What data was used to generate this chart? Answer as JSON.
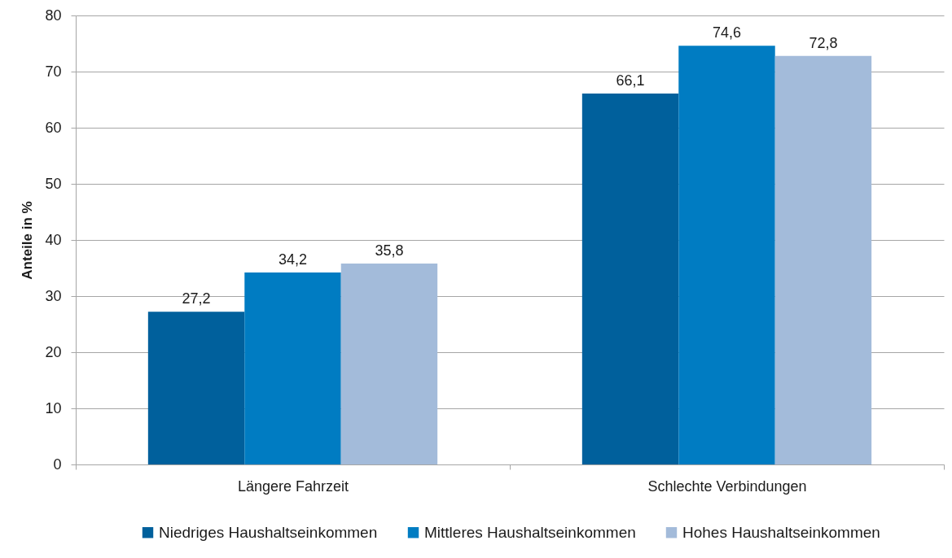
{
  "chart_data": {
    "type": "bar",
    "ylabel": "Anteile in %",
    "categories": [
      "Längere Fahrzeit",
      "Schlechte Verbindungen"
    ],
    "series": [
      {
        "name": "Niedriges Haushaltseinkommen",
        "color": "#00609c",
        "values": [
          27.2,
          66.1
        ],
        "value_labels": [
          "27,2",
          "66,1"
        ]
      },
      {
        "name": "Mittleres Haushaltseinkommen",
        "color": "#007cc2",
        "values": [
          34.2,
          74.6
        ],
        "value_labels": [
          "34,2",
          "74,6"
        ]
      },
      {
        "name": "Hohes Haushaltseinkommen",
        "color": "#a3bbda",
        "values": [
          35.8,
          72.8
        ],
        "value_labels": [
          "35,8",
          "72,8"
        ]
      }
    ],
    "ylim": [
      0,
      80
    ],
    "yticks": [
      0,
      10,
      20,
      30,
      40,
      50,
      60,
      70,
      80
    ],
    "grid": "y",
    "legend": "bottom"
  }
}
